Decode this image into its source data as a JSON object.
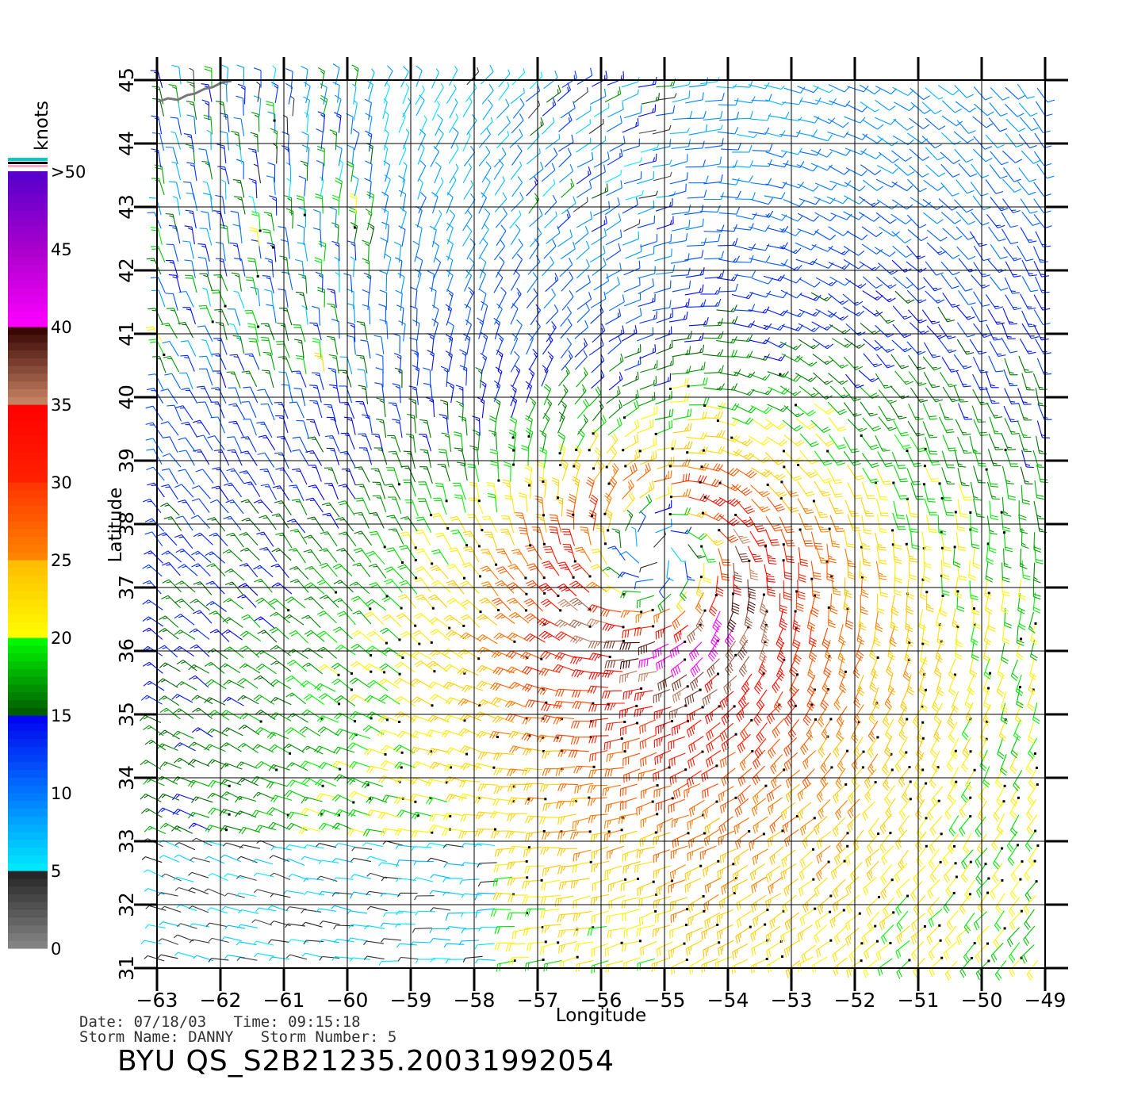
{
  "figure": {
    "info_line_1": "Date: 07/18/03   Time: 09:15:18",
    "info_line_2": "Storm Name: DANNY   Storm Number: 5",
    "product_id": "BYU QS_S2B21235.20031992054"
  },
  "map": {
    "type": "wind-barb map",
    "xlabel": "Longitude",
    "ylabel": "Latitude",
    "xlim": [
      -63,
      -49
    ],
    "ylim": [
      31,
      45
    ],
    "x_ticks": [
      -63,
      -62,
      -61,
      -60,
      -59,
      -58,
      -57,
      -56,
      -55,
      -54,
      -53,
      -52,
      -51,
      -50,
      -49
    ],
    "y_ticks": [
      31,
      32,
      33,
      34,
      35,
      36,
      37,
      38,
      39,
      40,
      41,
      42,
      43,
      44,
      45
    ],
    "x_tick_labels": [
      "−63",
      "−62",
      "−61",
      "−60",
      "−59",
      "−58",
      "−57",
      "−56",
      "−55",
      "−54",
      "−53",
      "−52",
      "−51",
      "−50",
      "−49"
    ],
    "y_tick_labels": [
      "31",
      "32",
      "33",
      "34",
      "35",
      "36",
      "37",
      "38",
      "39",
      "40",
      "41",
      "42",
      "43",
      "44",
      "45"
    ],
    "grid": true,
    "storm_center": {
      "lon": -55.1,
      "lat": 37.3
    },
    "coastline_color": "#777777"
  },
  "colorbar": {
    "unit": "knots",
    "labels": [
      "0",
      "5",
      "10",
      "15",
      "20",
      "25",
      "30",
      "35",
      "40",
      "45",
      ">50"
    ],
    "label_values": [
      0,
      5,
      10,
      15,
      20,
      25,
      30,
      35,
      40,
      45,
      50
    ],
    "scale": [
      {
        "lo": 0,
        "hi": 5,
        "from": "#888888",
        "to": "#222222"
      },
      {
        "lo": 5,
        "hi": 10,
        "from": "#00eeff",
        "to": "#0077ff"
      },
      {
        "lo": 10,
        "hi": 15,
        "from": "#0077ff",
        "to": "#0000ee"
      },
      {
        "lo": 15,
        "hi": 20,
        "from": "#005500",
        "to": "#00ff00"
      },
      {
        "lo": 20,
        "hi": 25,
        "from": "#ffff00",
        "to": "#ffbb00"
      },
      {
        "lo": 25,
        "hi": 30,
        "from": "#ff8800",
        "to": "#ff3300"
      },
      {
        "lo": 30,
        "hi": 35,
        "from": "#ff2200",
        "to": "#ff0000"
      },
      {
        "lo": 35,
        "hi": 40,
        "from": "#cc8866",
        "to": "#330000"
      },
      {
        "lo": 40,
        "hi": 45,
        "from": "#ff00ff",
        "to": "#aa00cc"
      },
      {
        "lo": 45,
        "hi": 50,
        "from": "#aa00cc",
        "to": "#5500cc"
      }
    ]
  }
}
